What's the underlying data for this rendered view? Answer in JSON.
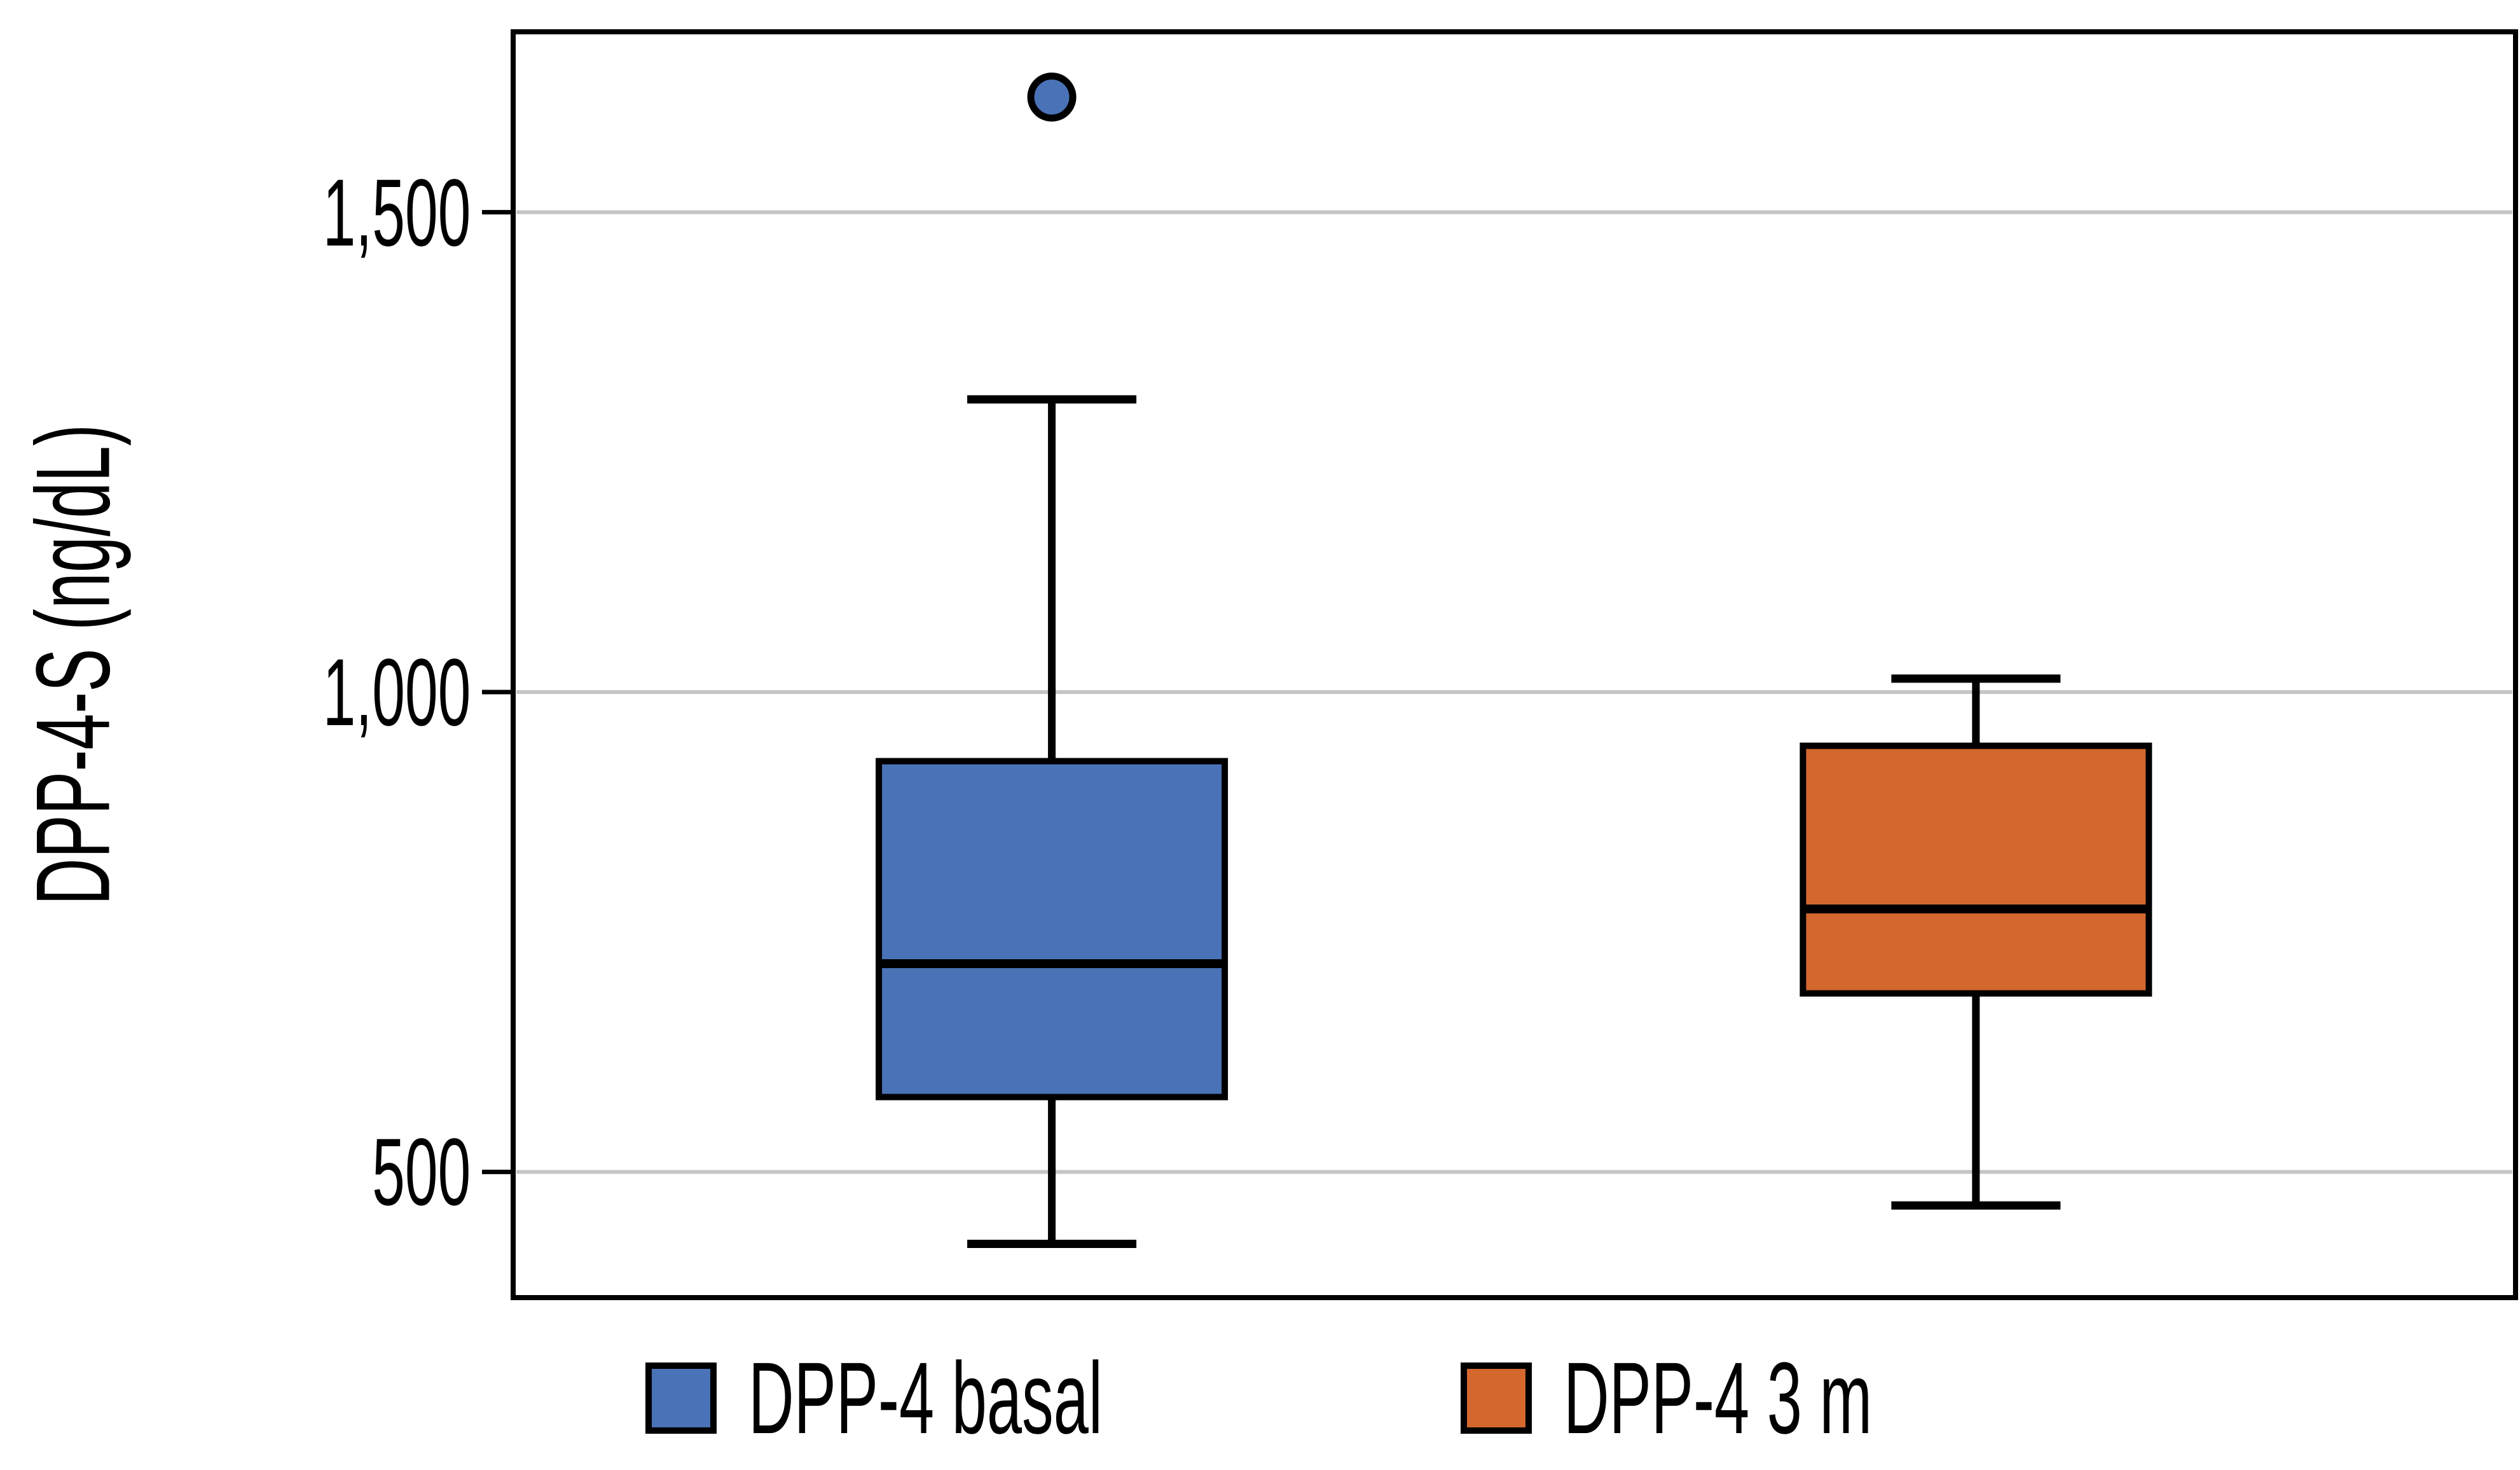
{
  "figure": {
    "background": "#ffffff",
    "frame_color": "#000000"
  },
  "y_axis": {
    "label": "DPP-4-S (ng/dL)",
    "ticks": [
      "1,500",
      "1,000",
      "500"
    ],
    "tick_values": [
      1500,
      1000,
      500
    ],
    "min": 369,
    "max": 1688
  },
  "legend": {
    "items": [
      {
        "label": "DPP-4 basal",
        "color": "#4A72B7"
      },
      {
        "label": "DPP-4 3 m",
        "color": "#D3672E"
      }
    ]
  },
  "chart_data": {
    "type": "box",
    "title": "",
    "xlabel": "",
    "ylabel": "DPP-4-S (ng/dL)",
    "ylim": [
      369,
      1688
    ],
    "gridlines": [
      500,
      1000,
      1500
    ],
    "grid_color": "#C5C5C5",
    "grid_on": true,
    "legend_position": "bottom",
    "series": [
      {
        "name": "DPP-4 basal",
        "color": "#4A72B7",
        "x_frac": 0.269,
        "min": 425,
        "q1": 578,
        "median": 717,
        "q3": 928,
        "max": 1305,
        "outliers": [
          1620
        ]
      },
      {
        "name": "DPP-4 3 m",
        "color": "#D3672E",
        "x_frac": 0.7305,
        "min": 465,
        "q1": 686,
        "median": 774,
        "q3": 944,
        "max": 1014,
        "outliers": []
      }
    ]
  }
}
